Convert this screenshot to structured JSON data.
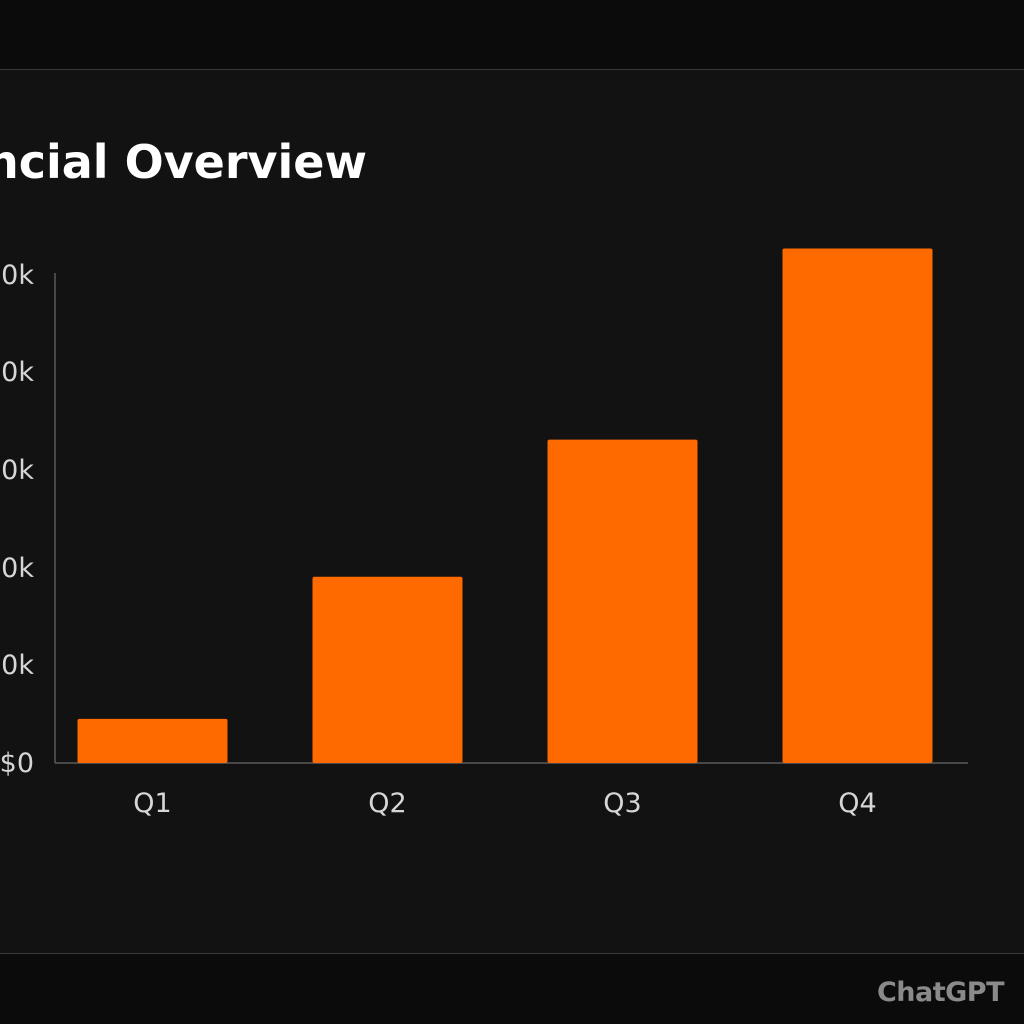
{
  "chart_data": {
    "type": "bar",
    "title": "ancial Overview",
    "categories": [
      "Q1",
      "Q2",
      "Q3",
      "Q4"
    ],
    "values": [
      4.5,
      19,
      33,
      52.5
    ],
    "y_tick_labels": [
      "$0",
      "0k",
      "0k",
      "0k",
      "0k",
      "0k"
    ],
    "ylim": [
      0,
      50
    ],
    "xlabel": "",
    "ylabel": "",
    "grid": false,
    "bar_color": "#ff6a00"
  },
  "colors": {
    "background": "#121212",
    "axis": "#5a5a5a",
    "tick_text": "#d6d6d6",
    "title": "#ffffff"
  },
  "watermark": {
    "text": "ChatGPT"
  }
}
